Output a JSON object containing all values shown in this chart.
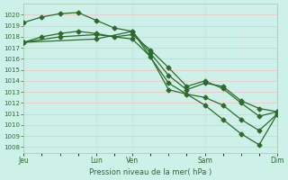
{
  "title": "Pression niveau de la mer( hPa )",
  "background_color": "#cdf0e8",
  "grid_major_color": "#f0c8c8",
  "grid_minor_color": "#d8ede8",
  "line_color": "#2d6b2d",
  "ylim": [
    1007.5,
    1021.0
  ],
  "xlim": [
    0,
    7
  ],
  "yticks": [
    1008,
    1009,
    1010,
    1011,
    1012,
    1013,
    1014,
    1015,
    1016,
    1017,
    1018,
    1019,
    1020
  ],
  "xtick_labels": [
    "Jeu",
    "",
    "Lun",
    "Ven",
    "",
    "Sam",
    "",
    "Dim"
  ],
  "xtick_positions": [
    0,
    1,
    2,
    3,
    4,
    5,
    6,
    7
  ],
  "vline_positions": [
    0,
    2,
    3,
    5,
    7
  ],
  "line1_x": [
    0,
    0.5,
    1.0,
    1.5,
    2.0,
    2.5,
    3.0,
    3.5,
    4.0,
    4.5,
    5.0,
    5.5,
    6.0,
    6.5,
    7.0
  ],
  "line1_y": [
    1019.3,
    1019.8,
    1020.1,
    1020.2,
    1019.5,
    1018.8,
    1018.5,
    1016.5,
    1014.5,
    1013.2,
    1013.8,
    1013.5,
    1012.2,
    1011.5,
    1011.2
  ],
  "line2_x": [
    0,
    0.5,
    1.0,
    1.5,
    2.0,
    2.5,
    3.0,
    3.5,
    4.0,
    4.5,
    5.0,
    5.5,
    6.0,
    6.5,
    7.0
  ],
  "line2_y": [
    1017.5,
    1018.0,
    1018.3,
    1018.5,
    1018.3,
    1018.0,
    1018.2,
    1016.8,
    1015.2,
    1013.5,
    1014.0,
    1013.3,
    1012.0,
    1010.8,
    1011.2
  ],
  "line3_x": [
    0,
    1.0,
    2.0,
    3.0,
    3.5,
    4.0,
    4.5,
    5.0,
    5.5,
    6.0,
    6.5,
    7.0
  ],
  "line3_y": [
    1017.5,
    1018.0,
    1018.2,
    1017.8,
    1016.2,
    1013.2,
    1012.8,
    1012.5,
    1011.8,
    1010.5,
    1009.5,
    1011.0
  ],
  "line4_x": [
    0,
    2.0,
    3.0,
    4.0,
    5.0,
    5.5,
    6.0,
    6.5,
    7.0
  ],
  "line4_y": [
    1017.5,
    1017.8,
    1018.5,
    1013.8,
    1011.8,
    1010.5,
    1009.2,
    1008.2,
    1011.0
  ]
}
